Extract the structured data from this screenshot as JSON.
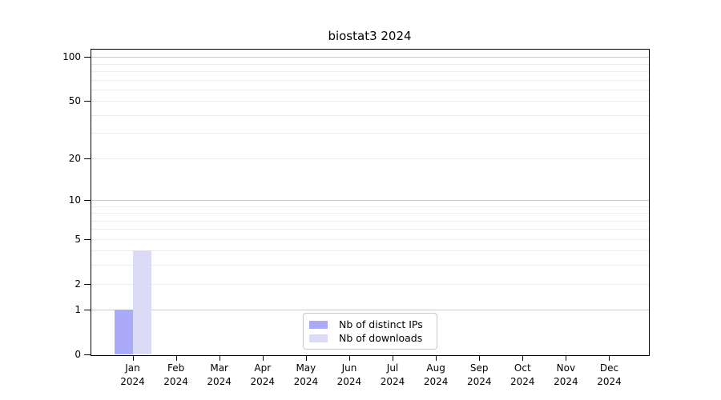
{
  "title": "biostat3 2024",
  "colors": {
    "axis": "#000000",
    "grid_major": "#c9c9c9",
    "grid_minor": "#ececec",
    "legend_border": "#c8c8c8",
    "background": "#ffffff",
    "distinct_ips_bar": "#aaaaf8",
    "downloads_bar": "#dbdbf8"
  },
  "chart_data": {
    "type": "bar",
    "title": "biostat3 2024",
    "categories": [
      "Jan 2024",
      "Feb 2024",
      "Mar 2024",
      "Apr 2024",
      "May 2024",
      "Jun 2024",
      "Jul 2024",
      "Aug 2024",
      "Sep 2024",
      "Oct 2024",
      "Nov 2024",
      "Dec 2024"
    ],
    "x_months": [
      "Jan",
      "Feb",
      "Mar",
      "Apr",
      "May",
      "Jun",
      "Jul",
      "Aug",
      "Sep",
      "Oct",
      "Nov",
      "Dec"
    ],
    "x_year": "2024",
    "series": [
      {
        "name": "Nb of distinct IPs",
        "color": "#aaaaf8",
        "values": [
          1,
          0,
          0,
          0,
          0,
          0,
          0,
          0,
          0,
          0,
          0,
          0
        ]
      },
      {
        "name": "Nb of downloads",
        "color": "#dbdbf8",
        "values": [
          4,
          0,
          0,
          0,
          0,
          0,
          0,
          0,
          0,
          0,
          0,
          0
        ]
      }
    ],
    "y_ticks": [
      0,
      1,
      2,
      5,
      10,
      20,
      50,
      100
    ],
    "gridlines": {
      "major": [
        1,
        10,
        100
      ],
      "minor": [
        2,
        3,
        4,
        5,
        6,
        7,
        8,
        9,
        20,
        30,
        40,
        50,
        60,
        70,
        80,
        90
      ]
    },
    "y_scale": "log1p",
    "ylim": [
      0,
      113
    ],
    "grid": true,
    "legend_position": "bottom-center"
  }
}
